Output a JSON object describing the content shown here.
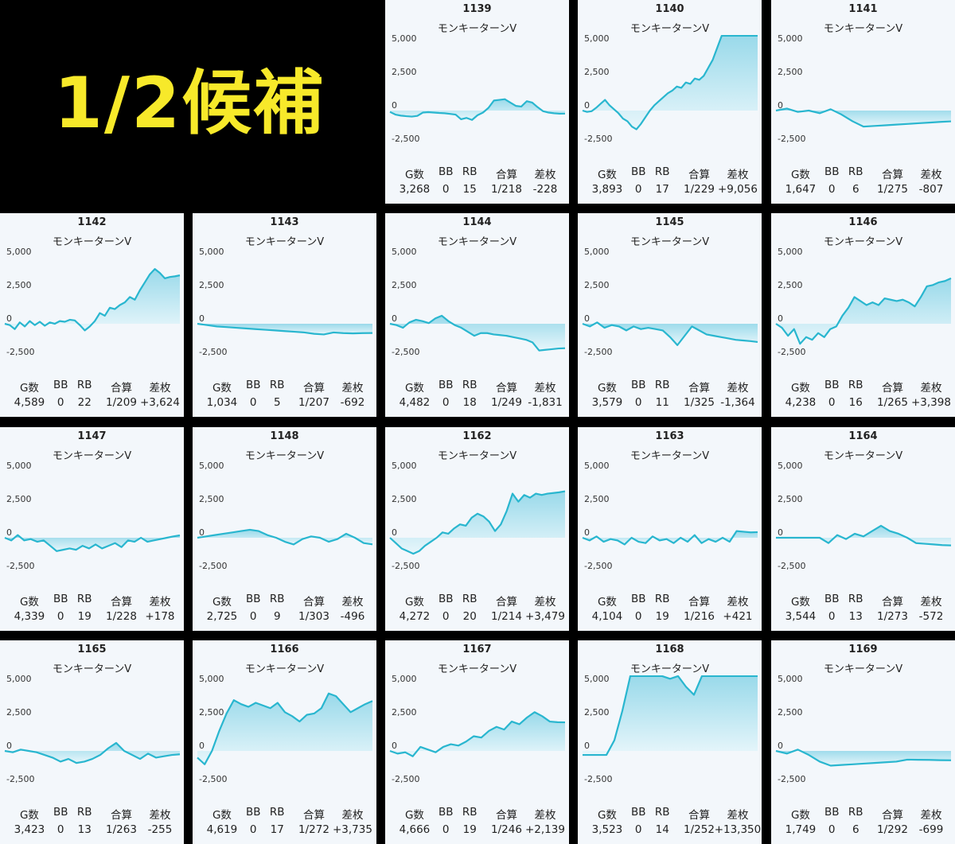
{
  "banner": {
    "text": "1/2候補"
  },
  "colors": {
    "line": "#29b6cf",
    "fill_top": "#8fd6e8",
    "fill_bottom": "#e6f6fb",
    "panel_bg": "#f3f7fb",
    "background": "#000000",
    "banner_text": "#f7e92a"
  },
  "labels": {
    "g": "G数",
    "bb": "BB",
    "rb": "RB",
    "total": "合算",
    "diff": "差枚"
  },
  "axis": {
    "y_ticks": [
      5000,
      2500,
      0,
      -2500
    ],
    "y_tick_labels": [
      "5,000",
      "2,500",
      "0",
      "-2,500"
    ],
    "ylim": [
      -2800,
      5600
    ],
    "grid": false
  },
  "chart_data": [
    {
      "type": "area",
      "title": "1139",
      "subtitle": "モンキーターンV",
      "stats": {
        "g": "3,268",
        "bb": "0",
        "rb": "15",
        "total": "1/218",
        "diff": "-228"
      },
      "values": [
        -100,
        -300,
        -380,
        -420,
        -450,
        -400,
        -150,
        -120,
        -150,
        -180,
        -200,
        -250,
        -300,
        -650,
        -550,
        -700,
        -350,
        -150,
        200,
        750,
        800,
        850,
        600,
        350,
        300,
        700,
        600,
        250,
        -50,
        -150,
        -200,
        -230,
        -228
      ]
    },
    {
      "type": "area",
      "title": "1140",
      "subtitle": "モンキーターンV",
      "stats": {
        "g": "3,893",
        "bb": "0",
        "rb": "17",
        "total": "1/229",
        "diff": "+9,056"
      },
      "values": [
        0,
        -100,
        -50,
        200,
        500,
        800,
        400,
        100,
        -200,
        -600,
        -800,
        -1200,
        -1400,
        -1000,
        -500,
        0,
        400,
        700,
        1000,
        1300,
        1500,
        1800,
        1700,
        2100,
        2000,
        2400,
        2300,
        2600,
        3200,
        3800,
        4700,
        5600,
        5600,
        5600,
        5600,
        5600,
        5600,
        5600,
        5600,
        5600
      ]
    },
    {
      "type": "area",
      "title": "1141",
      "subtitle": "モンキーターンV",
      "stats": {
        "g": "1,647",
        "bb": "0",
        "rb": "6",
        "total": "1/275",
        "diff": "-807"
      },
      "values": [
        0,
        150,
        -100,
        0,
        -200,
        100,
        -300,
        -800,
        -1200,
        -1150,
        -1100,
        -1050,
        -1000,
        -950,
        -900,
        -850,
        -807
      ]
    },
    {
      "type": "area",
      "title": "1142",
      "subtitle": "モンキーターンV",
      "stats": {
        "g": "4,589",
        "bb": "0",
        "rb": "22",
        "total": "1/209",
        "diff": "+3,624"
      },
      "values": [
        0,
        -100,
        -400,
        100,
        -200,
        200,
        -100,
        150,
        -150,
        100,
        0,
        200,
        150,
        300,
        250,
        -100,
        -500,
        -200,
        200,
        800,
        600,
        1200,
        1100,
        1400,
        1600,
        2000,
        1800,
        2500,
        3100,
        3700,
        4100,
        3800,
        3400,
        3500,
        3550,
        3624
      ]
    },
    {
      "type": "area",
      "title": "1143",
      "subtitle": "モンキーターンV",
      "stats": {
        "g": "1,034",
        "bb": "0",
        "rb": "5",
        "total": "1/207",
        "diff": "-692"
      },
      "values": [
        0,
        -100,
        -200,
        -250,
        -300,
        -350,
        -400,
        -450,
        -500,
        -550,
        -600,
        -650,
        -750,
        -800,
        -650,
        -700,
        -720,
        -700,
        -692
      ]
    },
    {
      "type": "area",
      "title": "1144",
      "subtitle": "モンキーターンV",
      "stats": {
        "g": "4,482",
        "bb": "0",
        "rb": "18",
        "total": "1/249",
        "diff": "-1,831"
      },
      "values": [
        0,
        -100,
        -300,
        100,
        300,
        200,
        50,
        400,
        600,
        200,
        -100,
        -300,
        -600,
        -900,
        -700,
        -700,
        -800,
        -850,
        -900,
        -1000,
        -1100,
        -1200,
        -1400,
        -2000,
        -1950,
        -1900,
        -1850,
        -1831
      ]
    },
    {
      "type": "area",
      "title": "1145",
      "subtitle": "モンキーターンV",
      "stats": {
        "g": "3,579",
        "bb": "0",
        "rb": "11",
        "total": "1/325",
        "diff": "-1,364"
      },
      "values": [
        0,
        -200,
        100,
        -300,
        -100,
        -200,
        -500,
        -200,
        -400,
        -300,
        -400,
        -500,
        -1000,
        -1600,
        -900,
        -200,
        -500,
        -800,
        -900,
        -1000,
        -1100,
        -1200,
        -1250,
        -1300,
        -1364
      ]
    },
    {
      "type": "area",
      "title": "1146",
      "subtitle": "モンキーターンV",
      "stats": {
        "g": "4,238",
        "bb": "0",
        "rb": "16",
        "total": "1/265",
        "diff": "+3,398"
      },
      "values": [
        0,
        -300,
        -900,
        -400,
        -1500,
        -1000,
        -1200,
        -700,
        -1000,
        -400,
        -200,
        600,
        1200,
        2000,
        1700,
        1400,
        1600,
        1400,
        1900,
        1800,
        1700,
        1800,
        1600,
        1300,
        2000,
        2800,
        2900,
        3100,
        3200,
        3398
      ]
    },
    {
      "type": "area",
      "title": "1147",
      "subtitle": "モンキーターンV",
      "stats": {
        "g": "4,339",
        "bb": "0",
        "rb": "19",
        "total": "1/228",
        "diff": "+178"
      },
      "values": [
        0,
        -200,
        200,
        -200,
        -100,
        -300,
        -200,
        -600,
        -1000,
        -900,
        -800,
        -900,
        -600,
        -800,
        -500,
        -800,
        -600,
        -400,
        -700,
        -200,
        -300,
        0,
        -300,
        -200,
        -100,
        0,
        100,
        178
      ]
    },
    {
      "type": "area",
      "title": "1148",
      "subtitle": "モンキーターンV",
      "stats": {
        "g": "2,725",
        "bb": "0",
        "rb": "9",
        "total": "1/303",
        "diff": "-496"
      },
      "values": [
        0,
        100,
        200,
        300,
        400,
        500,
        600,
        500,
        200,
        0,
        -300,
        -500,
        -100,
        100,
        0,
        -300,
        -100,
        300,
        0,
        -400,
        -496
      ]
    },
    {
      "type": "area",
      "title": "1162",
      "subtitle": "モンキーターンV",
      "stats": {
        "g": "4,272",
        "bb": "0",
        "rb": "20",
        "total": "1/214",
        "diff": "+3,479"
      },
      "values": [
        0,
        -400,
        -800,
        -1000,
        -1200,
        -1000,
        -600,
        -300,
        0,
        400,
        300,
        700,
        1000,
        900,
        1500,
        1800,
        1600,
        1200,
        500,
        1000,
        2000,
        3300,
        2700,
        3200,
        3000,
        3300,
        3200,
        3300,
        3350,
        3400,
        3479
      ]
    },
    {
      "type": "area",
      "title": "1163",
      "subtitle": "モンキーターンV",
      "stats": {
        "g": "4,104",
        "bb": "0",
        "rb": "19",
        "total": "1/216",
        "diff": "+421"
      },
      "values": [
        0,
        -200,
        100,
        -300,
        -100,
        -200,
        -500,
        0,
        -300,
        -400,
        100,
        -200,
        -100,
        -400,
        0,
        -300,
        200,
        -400,
        -100,
        -300,
        0,
        -300,
        500,
        450,
        400,
        421
      ]
    },
    {
      "type": "area",
      "title": "1164",
      "subtitle": "モンキーターンV",
      "stats": {
        "g": "3,544",
        "bb": "0",
        "rb": "13",
        "total": "1/273",
        "diff": "-572"
      },
      "values": [
        0,
        0,
        0,
        0,
        0,
        0,
        -400,
        200,
        -100,
        300,
        100,
        500,
        900,
        500,
        300,
        0,
        -400,
        -450,
        -500,
        -550,
        -572
      ]
    },
    {
      "type": "area",
      "title": "1165",
      "subtitle": "モンキーターンV",
      "stats": {
        "g": "3,423",
        "bb": "0",
        "rb": "13",
        "total": "1/263",
        "diff": "-255"
      },
      "values": [
        0,
        -100,
        100,
        0,
        -100,
        -300,
        -500,
        -800,
        -600,
        -900,
        -800,
        -600,
        -300,
        200,
        600,
        0,
        -300,
        -600,
        -200,
        -500,
        -400,
        -300,
        -255
      ]
    },
    {
      "type": "area",
      "title": "1166",
      "subtitle": "モンキーターンV",
      "stats": {
        "g": "4,619",
        "bb": "0",
        "rb": "17",
        "total": "1/272",
        "diff": "+3,735"
      },
      "values": [
        -500,
        -1000,
        0,
        1500,
        2800,
        3800,
        3500,
        3300,
        3600,
        3400,
        3200,
        3600,
        2900,
        2600,
        2200,
        2700,
        2800,
        3200,
        4300,
        4100,
        3500,
        2900,
        3200,
        3500,
        3735
      ]
    },
    {
      "type": "area",
      "title": "1167",
      "subtitle": "モンキーターンV",
      "stats": {
        "g": "4,666",
        "bb": "0",
        "rb": "19",
        "total": "1/246",
        "diff": "+2,139"
      },
      "values": [
        0,
        -200,
        -100,
        -400,
        300,
        100,
        -100,
        300,
        500,
        400,
        700,
        1100,
        1000,
        1500,
        1800,
        1600,
        2200,
        2000,
        2500,
        2900,
        2600,
        2200,
        2150,
        2139
      ]
    },
    {
      "type": "area",
      "title": "1168",
      "subtitle": "モンキーターンV",
      "stats": {
        "g": "3,523",
        "bb": "0",
        "rb": "14",
        "total": "1/252",
        "diff": "+13,350"
      },
      "values": [
        -300,
        -300,
        -300,
        -300,
        800,
        3000,
        5600,
        5600,
        5600,
        5600,
        5600,
        5400,
        5600,
        4800,
        4200,
        5600,
        5600,
        5600,
        5600,
        5600,
        5600,
        5600,
        5600
      ]
    },
    {
      "type": "area",
      "title": "1169",
      "subtitle": "モンキーターンV",
      "stats": {
        "g": "1,749",
        "bb": "0",
        "rb": "6",
        "total": "1/292",
        "diff": "-699"
      },
      "values": [
        0,
        -200,
        100,
        -300,
        -800,
        -1100,
        -1050,
        -1000,
        -950,
        -900,
        -850,
        -800,
        -650,
        -660,
        -670,
        -690,
        -699
      ]
    }
  ]
}
